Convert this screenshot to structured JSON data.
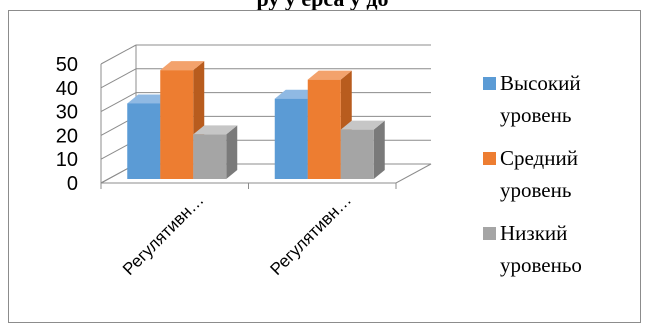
{
  "heading": "ру                у       ерса           у           до",
  "chart_data": {
    "type": "bar",
    "title": "",
    "xlabel": "",
    "ylabel": "",
    "categories": [
      "Регулятивн…",
      "Регулятивн…"
    ],
    "series": [
      {
        "name": "Высокий уровень",
        "values": [
          33,
          35
        ]
      },
      {
        "name": "Средний уровень",
        "values": [
          47,
          43
        ]
      },
      {
        "name": "Низкий уровеньо",
        "values": [
          20,
          22
        ]
      }
    ],
    "ylim": [
      0,
      50
    ],
    "yticks": [
      0,
      10,
      20,
      30,
      40,
      50
    ],
    "grid": true,
    "legend": "right",
    "three_d": true
  },
  "colors": {
    "series": [
      {
        "front": "#5b9bd5",
        "top": "#8fb9e3",
        "side": "#3f78ad"
      },
      {
        "front": "#ed7d31",
        "top": "#f3a26c",
        "side": "#b85c1e"
      },
      {
        "front": "#a5a5a5",
        "top": "#c6c6c6",
        "side": "#7a7a7a"
      }
    ],
    "grid": "#8c8c8c",
    "wall": "#ffffff",
    "frame": "#8c8c8c"
  }
}
